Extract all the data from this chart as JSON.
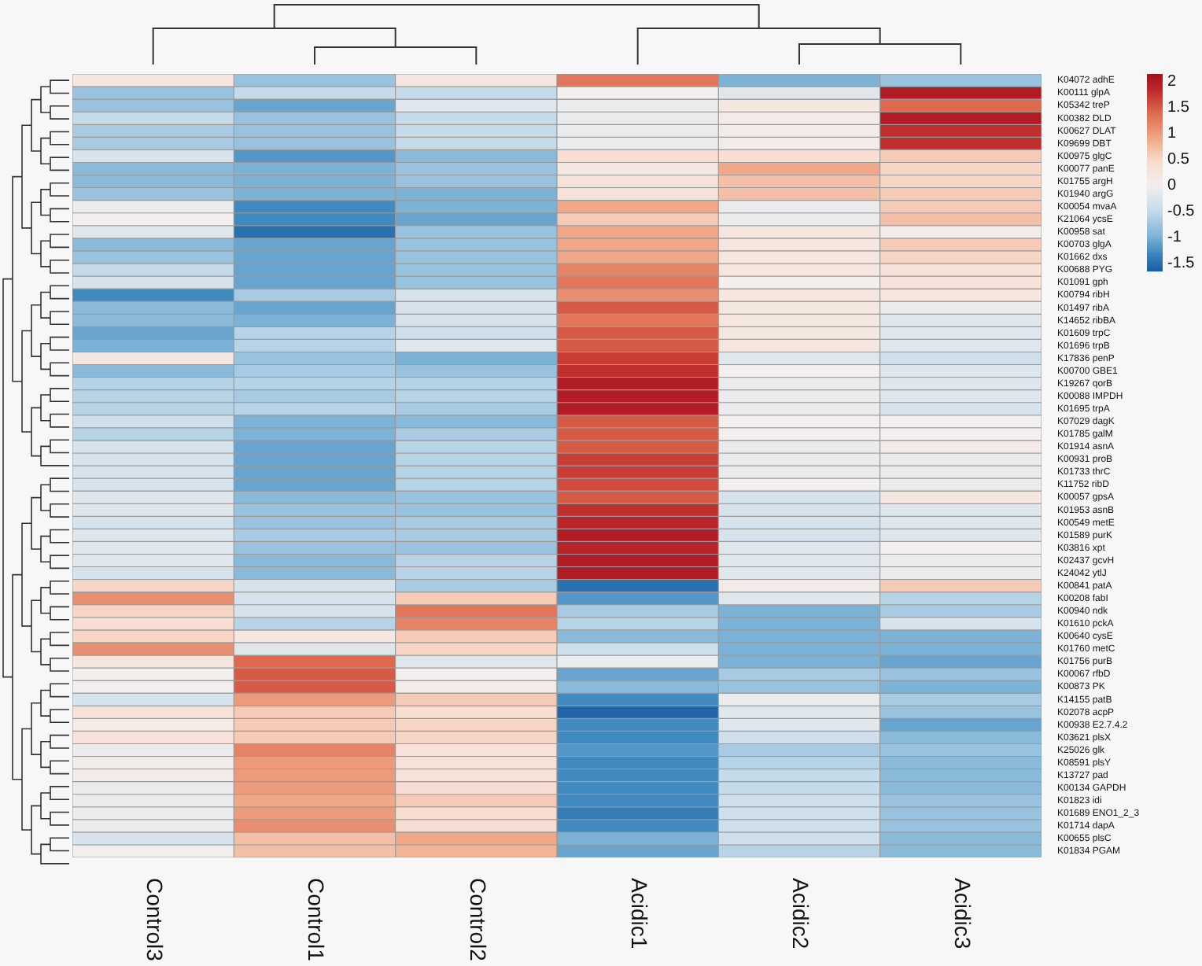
{
  "chart_data": {
    "type": "heatmap",
    "categories": [
      "Control3",
      "Control1",
      "Control2",
      "Acidic1",
      "Acidic2",
      "Acidic3"
    ],
    "y_categories": [
      "K04072 adhE",
      "K00111 glpA",
      "K05342 treP",
      "K00382 DLD",
      "K00627 DLAT",
      "K09699 DBT",
      "K00975 glgC",
      "K00077 panE",
      "K01755 argH",
      "K01940 argG",
      "K00054 mvaA",
      "K21064 ycsE",
      "K00958 sat",
      "K00703 glgA",
      "K01662 dxs",
      "K00688 PYG",
      "K01091 gph",
      "K00794 ribH",
      "K01497 ribA",
      "K14652 ribBA",
      "K01609 trpC",
      "K01696 trpB",
      "K17836 penP",
      "K00700 GBE1",
      "K19267 qorB",
      "K00088 IMPDH",
      "K01695 trpA",
      "K07029 dagK",
      "K01785 galM",
      "K01914 asnA",
      "K00931 proB",
      "K01733 thrC",
      "K11752 ribD",
      "K00057 gpsA",
      "K01953 asnB",
      "K00549 metE",
      "K01589 purK",
      "K03816 xpt",
      "K02437 gcvH",
      "K24042 ytlJ",
      "K00841 patA",
      "K00208 fabI",
      "K00940 ndk",
      "K01610 pckA",
      "K00640 cysE",
      "K01760 metC",
      "K01756 purB",
      "K00067 rfbD",
      "K00873 PK",
      "K14155 patB",
      "K02078 acpP",
      "K00938 E2.7.4.2",
      "K03621 plsX",
      "K25026 glk",
      "K08591 plsY",
      "K13727 pad",
      "K00134 GAPDH",
      "K01823 idi",
      "K01689 ENO1_2_3",
      "K01714 dapA",
      "K00655 plsC",
      "K01834 PGAM"
    ],
    "cells": [
      [
        0.2,
        -0.8,
        0.2,
        1.3,
        -1.0,
        -0.8
      ],
      [
        -0.8,
        -0.5,
        -0.5,
        0.0,
        -0.2,
        2.0
      ],
      [
        -0.8,
        -1.1,
        -0.2,
        -0.1,
        0.2,
        1.4
      ],
      [
        -0.5,
        -0.8,
        -0.5,
        -0.1,
        0.1,
        2.0
      ],
      [
        -0.7,
        -0.8,
        -0.5,
        -0.1,
        0.1,
        1.8
      ],
      [
        -0.7,
        -0.8,
        -0.5,
        -0.1,
        0.1,
        1.8
      ],
      [
        -0.3,
        -1.2,
        -0.9,
        0.4,
        0.4,
        0.6
      ],
      [
        -0.9,
        -1.0,
        -0.8,
        0.2,
        0.9,
        0.5
      ],
      [
        -0.9,
        -1.0,
        -0.8,
        0.3,
        0.7,
        0.5
      ],
      [
        -0.8,
        -1.0,
        -1.0,
        0.3,
        0.7,
        0.6
      ],
      [
        -0.1,
        -1.3,
        -1.0,
        0.9,
        -0.1,
        0.6
      ],
      [
        0.0,
        -1.3,
        -1.1,
        0.6,
        -0.1,
        0.7
      ],
      [
        -0.2,
        -1.5,
        -0.8,
        0.9,
        0.2,
        0.1
      ],
      [
        -0.9,
        -1.1,
        -0.8,
        0.9,
        0.2,
        0.6
      ],
      [
        -0.8,
        -1.1,
        -0.8,
        0.9,
        0.2,
        0.5
      ],
      [
        -0.5,
        -1.1,
        -0.8,
        1.2,
        0.2,
        0.3
      ],
      [
        -0.3,
        -1.1,
        -0.8,
        1.3,
        0.0,
        0.3
      ],
      [
        -1.3,
        -0.7,
        -0.3,
        1.1,
        0.2,
        0.2
      ],
      [
        -0.9,
        -1.1,
        -0.3,
        1.5,
        0.2,
        -0.1
      ],
      [
        -0.9,
        -1.0,
        -0.3,
        1.3,
        0.2,
        -0.2
      ],
      [
        -1.1,
        -0.6,
        -0.4,
        1.5,
        0.2,
        -0.2
      ],
      [
        -1.0,
        -0.6,
        -0.2,
        1.5,
        0.2,
        -0.2
      ],
      [
        0.2,
        -0.8,
        -1.0,
        1.7,
        -0.2,
        -0.4
      ],
      [
        -0.9,
        -0.7,
        -0.8,
        1.8,
        0.0,
        -0.2
      ],
      [
        -0.6,
        -0.6,
        -0.6,
        2.0,
        -0.1,
        -0.2
      ],
      [
        -0.6,
        -0.7,
        -0.6,
        2.0,
        -0.1,
        -0.2
      ],
      [
        -0.6,
        -0.6,
        -0.7,
        2.0,
        -0.1,
        -0.3
      ],
      [
        -0.4,
        -1.0,
        -0.9,
        1.5,
        0.0,
        0.0
      ],
      [
        -0.6,
        -1.0,
        -0.7,
        1.5,
        0.0,
        0.0
      ],
      [
        -0.3,
        -1.1,
        -0.6,
        1.5,
        -0.1,
        0.1
      ],
      [
        -0.3,
        -1.1,
        -0.6,
        1.7,
        -0.1,
        -0.1
      ],
      [
        -0.3,
        -1.1,
        -0.6,
        1.7,
        -0.1,
        -0.1
      ],
      [
        -0.3,
        -1.1,
        -0.6,
        1.6,
        0.0,
        -0.1
      ],
      [
        -0.2,
        -0.9,
        -0.8,
        1.5,
        -0.3,
        0.2
      ],
      [
        -0.2,
        -0.8,
        -0.8,
        1.8,
        -0.3,
        -0.2
      ],
      [
        -0.3,
        -0.8,
        -0.7,
        1.9,
        -0.3,
        -0.2
      ],
      [
        -0.2,
        -0.7,
        -0.7,
        2.0,
        -0.3,
        -0.2
      ],
      [
        -0.2,
        -0.8,
        -0.8,
        1.9,
        -0.2,
        0.0
      ],
      [
        -0.2,
        -0.9,
        -0.6,
        2.0,
        -0.2,
        -0.1
      ],
      [
        -0.3,
        -0.9,
        -0.6,
        2.0,
        -0.2,
        -0.1
      ],
      [
        0.5,
        -0.3,
        -0.7,
        -1.5,
        0.1,
        0.6
      ],
      [
        1.1,
        -0.3,
        0.6,
        -1.2,
        -0.2,
        -0.6
      ],
      [
        0.5,
        -0.3,
        1.3,
        -0.7,
        -1.0,
        -0.7
      ],
      [
        0.4,
        -0.6,
        1.2,
        -0.6,
        -1.0,
        -0.3
      ],
      [
        0.5,
        0.2,
        0.6,
        -0.9,
        -1.0,
        -1.0
      ],
      [
        1.1,
        -0.2,
        0.5,
        -0.4,
        -1.0,
        -1.0
      ],
      [
        0.2,
        1.4,
        -0.2,
        -0.1,
        -1.0,
        -1.1
      ],
      [
        0.0,
        1.5,
        0.0,
        -1.1,
        -0.7,
        -0.8
      ],
      [
        0.0,
        1.5,
        0.1,
        -0.9,
        -0.8,
        -1.0
      ],
      [
        -0.3,
        1.0,
        0.6,
        -1.3,
        -0.1,
        -0.7
      ],
      [
        0.3,
        0.6,
        0.4,
        -1.6,
        -0.2,
        -0.8
      ],
      [
        0.1,
        0.6,
        0.5,
        -1.3,
        -0.2,
        -1.1
      ],
      [
        0.3,
        0.6,
        0.5,
        -1.3,
        -0.4,
        -0.9
      ],
      [
        -0.1,
        1.2,
        0.3,
        -1.2,
        -0.7,
        -0.8
      ],
      [
        0.1,
        1.0,
        0.3,
        -1.3,
        -0.6,
        -0.9
      ],
      [
        0.1,
        1.0,
        0.3,
        -1.3,
        -0.5,
        -0.9
      ],
      [
        -0.1,
        1.0,
        0.4,
        -1.3,
        -0.5,
        -0.9
      ],
      [
        -0.1,
        0.9,
        0.6,
        -1.3,
        -0.4,
        -0.8
      ],
      [
        -0.1,
        1.0,
        0.4,
        -1.4,
        -0.4,
        -0.8
      ],
      [
        -0.1,
        1.1,
        0.4,
        -1.3,
        -0.4,
        -0.8
      ],
      [
        -0.3,
        0.7,
        0.9,
        -1.0,
        -0.4,
        -0.9
      ],
      [
        0.0,
        0.7,
        0.8,
        -1.1,
        -0.6,
        -0.9
      ]
    ],
    "clim": [
      -1.65,
      2.15
    ],
    "cticks": [
      -1.5,
      -1,
      -0.5,
      0,
      0.5,
      1,
      1.5,
      2
    ]
  }
}
